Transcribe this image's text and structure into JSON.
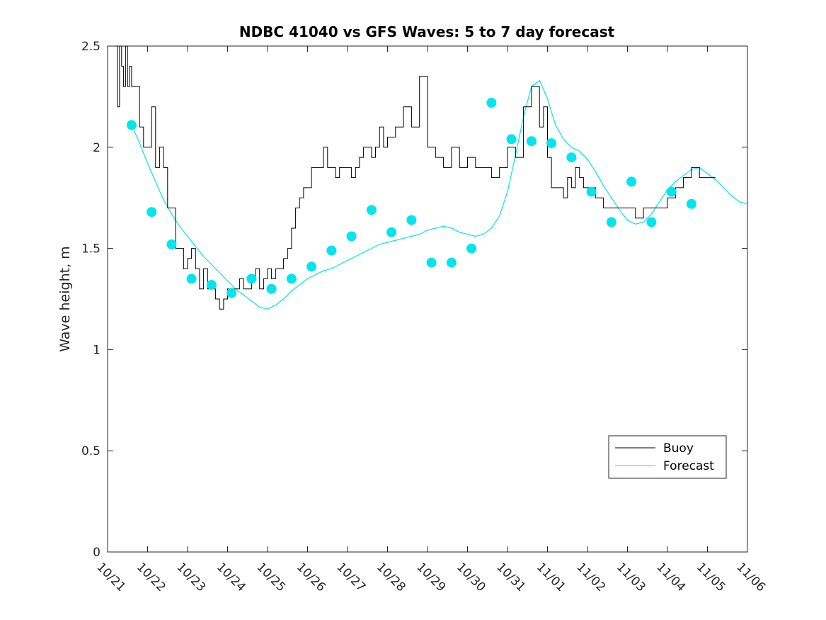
{
  "chart_data": {
    "type": "line",
    "title": "NDBC 41040 vs GFS Waves: 5 to 7 day forecast",
    "xlabel": "",
    "ylabel": "Wave height, m",
    "xlim": [
      0,
      16
    ],
    "ylim": [
      0,
      2.5
    ],
    "x_tick_values": [
      0,
      1,
      2,
      3,
      4,
      5,
      6,
      7,
      8,
      9,
      10,
      11,
      12,
      13,
      14,
      15,
      16
    ],
    "x_tick_labels": [
      "10/21",
      "10/22",
      "10/23",
      "10/24",
      "10/25",
      "10/26",
      "10/27",
      "10/28",
      "10/29",
      "10/30",
      "10/31",
      "11/01",
      "11/02",
      "11/03",
      "11/04",
      "11/05",
      "11/06"
    ],
    "y_tick_values": [
      0,
      0.5,
      1,
      1.5,
      2,
      2.5
    ],
    "y_tick_labels": [
      "0",
      "0.5",
      "1",
      "1.5",
      "2",
      "2.5"
    ],
    "colors": {
      "buoy": "#000000",
      "forecast": "#00e5ee",
      "axes": "#262626"
    },
    "legend": {
      "location": "bottom-right",
      "entries": [
        "Buoy",
        "Forecast"
      ]
    },
    "buoy_series": {
      "name": "Buoy",
      "x": [
        0.2,
        0.25,
        0.3,
        0.35,
        0.4,
        0.45,
        0.5,
        0.55,
        0.6,
        0.7,
        0.8,
        0.9,
        1.0,
        1.1,
        1.2,
        1.3,
        1.4,
        1.5,
        1.6,
        1.7,
        1.8,
        1.9,
        2.0,
        2.1,
        2.2,
        2.3,
        2.4,
        2.5,
        2.6,
        2.7,
        2.8,
        2.9,
        3.0,
        3.1,
        3.2,
        3.3,
        3.4,
        3.5,
        3.6,
        3.7,
        3.8,
        3.9,
        4.0,
        4.1,
        4.2,
        4.3,
        4.4,
        4.5,
        4.6,
        4.7,
        4.8,
        4.9,
        5.0,
        5.1,
        5.2,
        5.3,
        5.4,
        5.5,
        5.6,
        5.7,
        5.8,
        5.9,
        6.0,
        6.1,
        6.2,
        6.3,
        6.4,
        6.5,
        6.6,
        6.7,
        6.8,
        6.9,
        7.0,
        7.2,
        7.4,
        7.6,
        7.8,
        8.0,
        8.2,
        8.4,
        8.6,
        8.8,
        9.0,
        9.2,
        9.4,
        9.6,
        9.8,
        10.0,
        10.2,
        10.4,
        10.6,
        10.8,
        10.9,
        11.0,
        11.1,
        11.2,
        11.3,
        11.4,
        11.5,
        11.6,
        11.7,
        11.8,
        11.9,
        12.0,
        12.2,
        12.4,
        12.6,
        12.8,
        13.0,
        13.2,
        13.4,
        13.6,
        13.8,
        14.0,
        14.2,
        14.4,
        14.6,
        14.8,
        15.0,
        15.2
      ],
      "values": [
        2.5,
        2.2,
        2.5,
        2.4,
        2.3,
        2.5,
        2.3,
        2.4,
        2.3,
        2.3,
        2.1,
        2.0,
        2.0,
        2.2,
        1.9,
        2.0,
        1.9,
        1.7,
        1.7,
        1.5,
        1.5,
        1.4,
        1.45,
        1.5,
        1.4,
        1.3,
        1.4,
        1.3,
        1.3,
        1.25,
        1.2,
        1.25,
        1.3,
        1.3,
        1.3,
        1.35,
        1.3,
        1.3,
        1.35,
        1.4,
        1.3,
        1.35,
        1.4,
        1.35,
        1.4,
        1.4,
        1.45,
        1.5,
        1.6,
        1.7,
        1.75,
        1.8,
        1.8,
        1.9,
        1.9,
        1.9,
        2.0,
        1.9,
        1.9,
        1.85,
        1.9,
        1.9,
        1.9,
        1.85,
        1.9,
        1.95,
        2.0,
        2.0,
        1.95,
        2.0,
        2.1,
        2.0,
        2.05,
        2.1,
        2.2,
        2.1,
        2.35,
        2.0,
        1.95,
        1.9,
        2.0,
        1.9,
        1.95,
        1.9,
        1.9,
        1.85,
        1.9,
        2.0,
        1.95,
        2.2,
        2.3,
        2.1,
        2.2,
        1.95,
        1.8,
        1.8,
        1.8,
        1.75,
        1.85,
        1.8,
        1.9,
        1.85,
        1.8,
        1.8,
        1.75,
        1.7,
        1.7,
        1.7,
        1.7,
        1.65,
        1.7,
        1.7,
        1.7,
        1.75,
        1.8,
        1.85,
        1.9,
        1.85,
        1.85,
        1.85
      ]
    },
    "forecast_series": [
      {
        "name": "Forecast",
        "x": [
          0.6,
          0.8,
          1.0,
          1.2,
          1.4,
          1.6,
          1.8,
          2.0,
          2.2,
          2.4,
          2.6,
          2.8,
          3.0,
          3.2,
          3.4,
          3.6,
          3.8,
          4.0,
          4.2,
          4.4,
          4.6,
          4.8,
          5.0,
          5.2,
          5.4,
          5.6,
          5.8,
          6.0,
          6.2,
          6.4,
          6.6,
          6.8,
          7.0,
          7.2,
          7.4,
          7.6,
          7.8,
          8.0,
          8.2,
          8.4,
          8.6,
          8.8,
          9.0,
          9.2,
          9.4,
          9.6,
          9.8,
          10.0,
          10.2,
          10.4,
          10.6,
          10.8,
          11.0,
          11.2,
          11.4,
          11.6,
          11.8,
          12.0,
          12.2,
          12.4,
          12.6,
          12.8,
          13.0,
          13.2,
          13.4,
          13.6,
          13.8,
          14.0,
          14.2,
          14.4,
          14.6,
          14.8,
          15.0,
          15.2,
          15.4,
          15.6,
          15.8,
          16.0
        ],
        "values": [
          2.11,
          2.02,
          1.92,
          1.83,
          1.74,
          1.67,
          1.61,
          1.56,
          1.51,
          1.46,
          1.42,
          1.38,
          1.34,
          1.3,
          1.27,
          1.24,
          1.21,
          1.2,
          1.22,
          1.25,
          1.29,
          1.32,
          1.35,
          1.37,
          1.39,
          1.4,
          1.42,
          1.44,
          1.46,
          1.48,
          1.5,
          1.52,
          1.53,
          1.54,
          1.55,
          1.56,
          1.57,
          1.59,
          1.6,
          1.61,
          1.6,
          1.58,
          1.57,
          1.56,
          1.57,
          1.6,
          1.66,
          1.78,
          1.96,
          2.15,
          2.3,
          2.33,
          2.24,
          2.11,
          2.04,
          2.0,
          1.98,
          1.94,
          1.88,
          1.81,
          1.75,
          1.69,
          1.64,
          1.62,
          1.63,
          1.67,
          1.73,
          1.79,
          1.83,
          1.86,
          1.89,
          1.9,
          1.87,
          1.84,
          1.8,
          1.76,
          1.73,
          1.72
        ]
      }
    ],
    "forecast_markers": {
      "x": [
        0.6,
        1.1,
        1.6,
        2.1,
        2.6,
        3.1,
        3.6,
        4.1,
        4.6,
        5.1,
        5.6,
        6.1,
        6.6,
        7.1,
        7.6,
        8.1,
        8.6,
        9.1,
        9.6,
        10.1,
        10.6,
        11.1,
        11.6,
        12.1,
        12.6,
        13.1,
        13.6,
        14.1,
        14.6
      ],
      "values": [
        2.11,
        1.68,
        1.52,
        1.35,
        1.32,
        1.28,
        1.35,
        1.3,
        1.35,
        1.41,
        1.49,
        1.56,
        1.69,
        1.58,
        1.64,
        1.43,
        1.43,
        1.5,
        2.22,
        2.04,
        2.03,
        2.02,
        1.95,
        1.78,
        1.63,
        1.83,
        1.63,
        1.78,
        1.72
      ]
    }
  }
}
